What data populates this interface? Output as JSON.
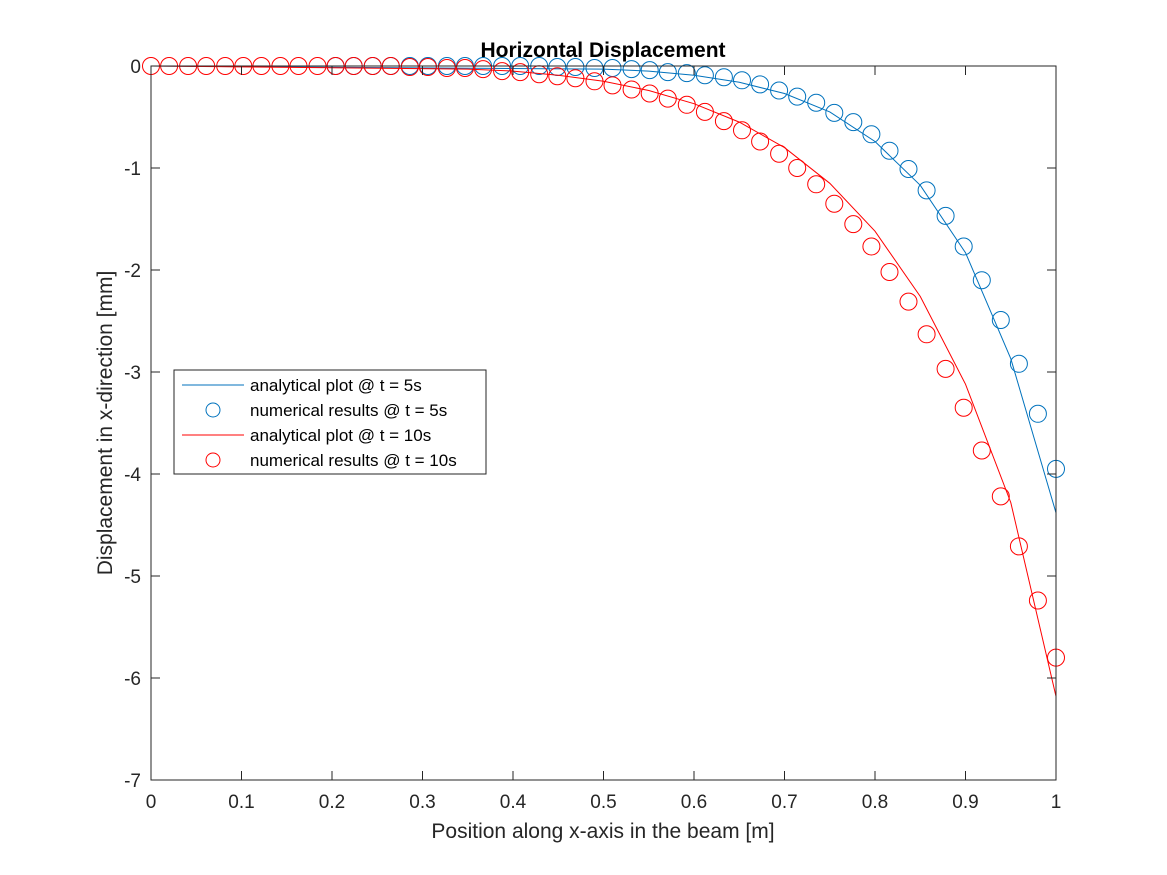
{
  "chart_data": {
    "type": "line",
    "title": "Horizontal Displacement",
    "xlabel": "Position along x-axis in the beam [m]",
    "ylabel": "Displacement in x-direction [mm]",
    "xlim": [
      0,
      1
    ],
    "ylim": [
      -7,
      0
    ],
    "xticks": [
      0,
      0.1,
      0.2,
      0.3,
      0.4,
      0.5,
      0.6,
      0.7,
      0.8,
      0.9,
      1
    ],
    "xtick_labels": [
      "0",
      "0.1",
      "0.2",
      "0.3",
      "0.4",
      "0.5",
      "0.6",
      "0.7",
      "0.8",
      "0.9",
      "1"
    ],
    "yticks": [
      0,
      -1,
      -2,
      -3,
      -4,
      -5,
      -6,
      -7
    ],
    "ytick_labels": [
      "0",
      "-1",
      "-2",
      "-3",
      "-4",
      "-5",
      "-6",
      "-7"
    ],
    "grid": false,
    "legend_position": "middle-left",
    "series": [
      {
        "name": "analytical plot @ t = 5s",
        "style": "line",
        "color": "#0072BD",
        "x": [
          0,
          0.5,
          0.55,
          0.6,
          0.65,
          0.7,
          0.75,
          0.8,
          0.85,
          0.9,
          0.95,
          1.0
        ],
        "y": [
          0,
          -0.03,
          -0.05,
          -0.09,
          -0.16,
          -0.27,
          -0.45,
          -0.74,
          -1.17,
          -1.83,
          -2.87,
          -4.38
        ]
      },
      {
        "name": "numerical results @ t = 5s",
        "style": "marker",
        "color": "#0072BD",
        "x": [
          0.204,
          0.224,
          0.245,
          0.265,
          0.286,
          0.306,
          0.327,
          0.347,
          0.367,
          0.388,
          0.408,
          0.429,
          0.449,
          0.469,
          0.49,
          0.51,
          0.531,
          0.551,
          0.571,
          0.592,
          0.612,
          0.633,
          0.653,
          0.673,
          0.694,
          0.714,
          0.735,
          0.755,
          0.776,
          0.796,
          0.816,
          0.837,
          0.857,
          0.878,
          0.898,
          0.918,
          0.939,
          0.959,
          0.98,
          1.0
        ],
        "y": [
          0,
          0,
          0,
          0,
          0,
          0,
          0,
          0,
          0,
          0,
          0,
          0,
          -0.01,
          -0.01,
          -0.02,
          -0.02,
          -0.03,
          -0.04,
          -0.06,
          -0.07,
          -0.09,
          -0.11,
          -0.14,
          -0.18,
          -0.24,
          -0.3,
          -0.36,
          -0.46,
          -0.55,
          -0.67,
          -0.83,
          -1.01,
          -1.22,
          -1.47,
          -1.77,
          -2.1,
          -2.49,
          -2.92,
          -3.41,
          -3.95
        ]
      },
      {
        "name": "analytical plot @ t = 10s",
        "style": "line",
        "color": "#FF0000",
        "x": [
          0,
          0.35,
          0.4,
          0.45,
          0.5,
          0.55,
          0.6,
          0.65,
          0.7,
          0.75,
          0.8,
          0.85,
          0.9,
          0.95,
          1.0
        ],
        "y": [
          0,
          -0.03,
          -0.05,
          -0.09,
          -0.15,
          -0.24,
          -0.37,
          -0.55,
          -0.8,
          -1.15,
          -1.62,
          -2.26,
          -3.12,
          -4.28,
          -6.18
        ]
      },
      {
        "name": "numerical results @ t = 10s",
        "style": "marker",
        "color": "#FF0000",
        "x": [
          0,
          0.02,
          0.041,
          0.061,
          0.082,
          0.102,
          0.122,
          0.143,
          0.163,
          0.184,
          0.204,
          0.224,
          0.245,
          0.265,
          0.286,
          0.306,
          0.327,
          0.347,
          0.367,
          0.388,
          0.408,
          0.429,
          0.449,
          0.469,
          0.49,
          0.51,
          0.531,
          0.551,
          0.571,
          0.592,
          0.612,
          0.633,
          0.653,
          0.673,
          0.694,
          0.714,
          0.735,
          0.755,
          0.776,
          0.796,
          0.816,
          0.837,
          0.857,
          0.878,
          0.898,
          0.918,
          0.939,
          0.959,
          0.98,
          1.0
        ],
        "y": [
          0,
          0,
          0,
          0,
          0,
          0,
          0,
          0,
          0,
          0,
          0,
          0,
          0,
          0,
          -0.01,
          -0.01,
          -0.02,
          -0.02,
          -0.03,
          -0.05,
          -0.06,
          -0.08,
          -0.1,
          -0.12,
          -0.15,
          -0.19,
          -0.23,
          -0.27,
          -0.32,
          -0.38,
          -0.45,
          -0.54,
          -0.63,
          -0.74,
          -0.86,
          -1.0,
          -1.16,
          -1.35,
          -1.55,
          -1.77,
          -2.02,
          -2.31,
          -2.63,
          -2.97,
          -3.35,
          -3.77,
          -4.22,
          -4.71,
          -5.24,
          -5.8
        ]
      }
    ]
  }
}
